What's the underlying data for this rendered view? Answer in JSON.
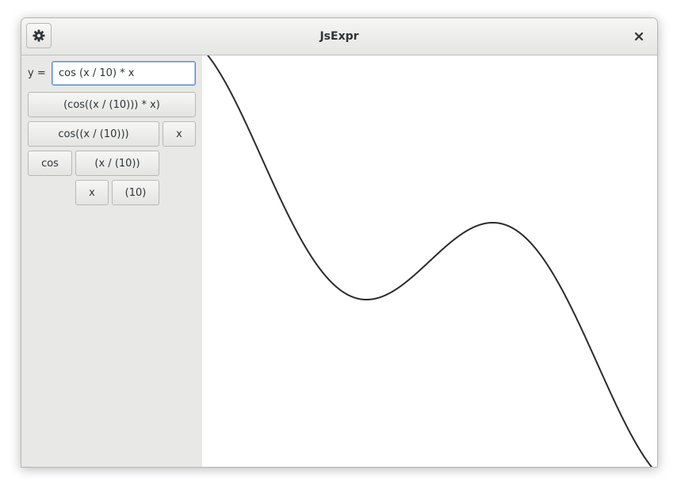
{
  "window": {
    "title": "JsExpr"
  },
  "header": {
    "settings_icon": "gear-icon",
    "close_icon": "close-icon"
  },
  "expression": {
    "y_label": "y =",
    "input_value": "cos (x / 10) * x"
  },
  "tree": {
    "root": "(cos((x / (10))) * x)",
    "cos_call": "cos((x / (10)))",
    "x_factor": "x",
    "cos_fn": "cos",
    "division": "(x / (10))",
    "x_numer": "x",
    "ten": "(10)"
  },
  "chart_data": {
    "type": "line",
    "title": "",
    "xlabel": "",
    "ylabel": "",
    "function": "cos(x / 10) * x",
    "xlim": [
      -31,
      31
    ],
    "ylim": [
      -30,
      30
    ],
    "grid": false,
    "line_color": "#2b2b2b"
  }
}
